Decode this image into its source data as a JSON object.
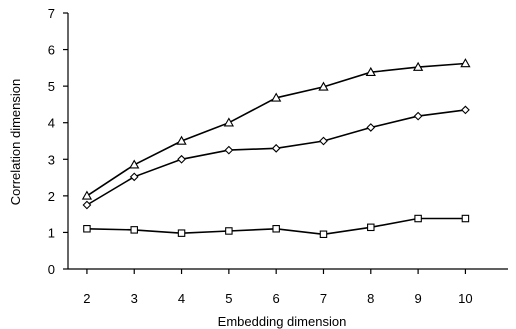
{
  "chart_data": {
    "type": "line",
    "title": "",
    "xlabel": "Embedding dimension",
    "ylabel": "Correlation dimension",
    "x": [
      2,
      3,
      4,
      5,
      6,
      7,
      8,
      9,
      10
    ],
    "xlim": [
      1.6,
      10.9
    ],
    "ylim": [
      0,
      7
    ],
    "yticks": [
      0,
      1,
      2,
      3,
      4,
      5,
      6,
      7
    ],
    "xticks": [
      2,
      3,
      4,
      5,
      6,
      7,
      8,
      9,
      10
    ],
    "grid": false,
    "legend": "none",
    "series": [
      {
        "marker": "triangle",
        "values": [
          2.0,
          2.85,
          3.5,
          4.0,
          4.68,
          4.98,
          5.38,
          5.52,
          5.62
        ]
      },
      {
        "marker": "diamond",
        "values": [
          1.75,
          2.52,
          3.0,
          3.25,
          3.3,
          3.5,
          3.87,
          4.18,
          4.35
        ]
      },
      {
        "marker": "square",
        "values": [
          1.1,
          1.07,
          0.98,
          1.04,
          1.1,
          0.95,
          1.14,
          1.38,
          1.38
        ]
      }
    ]
  }
}
